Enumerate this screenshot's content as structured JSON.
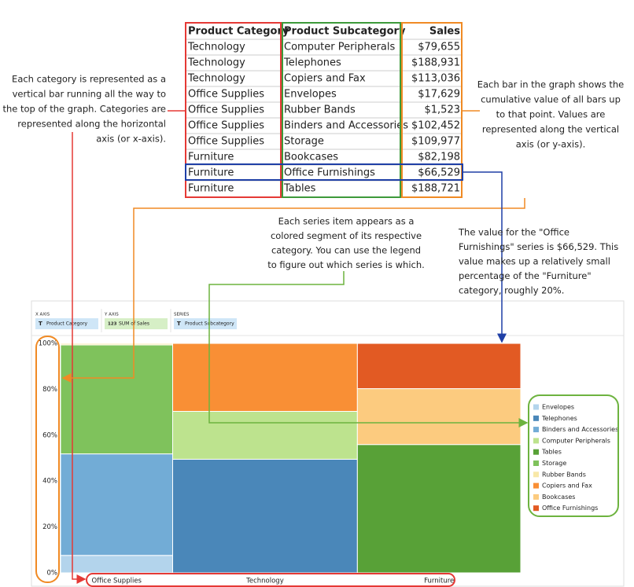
{
  "table": {
    "header": [
      "Product Category",
      "Product Subcategory",
      "Sales"
    ],
    "rows": [
      {
        "category": "Technology",
        "subcategory": "Computer Peripherals",
        "sales": {
          "value": 79655,
          "label": "$79,655"
        }
      },
      {
        "category": "Technology",
        "subcategory": "Telephones",
        "sales": {
          "value": 188931,
          "label": "$188,931"
        }
      },
      {
        "category": "Technology",
        "subcategory": "Copiers and Fax",
        "sales": {
          "value": 113036,
          "label": "$113,036"
        }
      },
      {
        "category": "Office Supplies",
        "subcategory": "Envelopes",
        "sales": {
          "value": 17629,
          "label": "$17,629"
        }
      },
      {
        "category": "Office Supplies",
        "subcategory": "Rubber Bands",
        "sales": {
          "value": 1523,
          "label": "$1,523"
        }
      },
      {
        "category": "Office Supplies",
        "subcategory": "Binders and Accessories",
        "sales": {
          "value": 102452,
          "label": "$102,452"
        }
      },
      {
        "category": "Office Supplies",
        "subcategory": "Storage",
        "sales": {
          "value": 109977,
          "label": "$109,977"
        }
      },
      {
        "category": "Furniture",
        "subcategory": "Bookcases",
        "sales": {
          "value": 82198,
          "label": "$82,198"
        }
      },
      {
        "category": "Furniture",
        "subcategory": "Office Furnishings",
        "sales": {
          "value": 66529,
          "label": "$66,529"
        }
      },
      {
        "category": "Furniture",
        "subcategory": "Tables",
        "sales": {
          "value": 188721,
          "label": "$188,721"
        }
      }
    ]
  },
  "annotations": {
    "category": [
      "Each category is represented as a",
      "vertical bar running all the way to",
      "the top of the graph. Categories are",
      "represented along the horizontal",
      "axis (or x-axis)."
    ],
    "value": [
      "Each bar in the graph shows the",
      "cumulative value of all bars up",
      "to that point. Values are",
      "represented along the vertical",
      "axis (or y-axis)."
    ],
    "series": [
      "Each series item appears as a",
      "colored segment of its respective",
      "category. You can use the legend",
      "to figure out which series is which."
    ],
    "example": [
      "The value for the \"Office",
      "Furnishings\" series is $66,529. This",
      "value makes up a relatively small",
      "percentage of the \"Furniture\"",
      "category, roughly 20%."
    ]
  },
  "chart": {
    "shelves": [
      {
        "title": "X AXIS",
        "icon": "T",
        "field": "Product Category",
        "kind": "dimension"
      },
      {
        "title": "Y AXIS",
        "icon": "123",
        "field": "SUM of Sales",
        "kind": "measure"
      },
      {
        "title": "SERIES",
        "icon": "T",
        "field": "Product Subcategory",
        "kind": "dimension"
      }
    ],
    "categories": [
      "Office Supplies",
      "Technology",
      "Furniture"
    ],
    "ylim": [
      0,
      100
    ],
    "yticks": [
      {
        "value": 0,
        "label": "0%"
      },
      {
        "value": 20,
        "label": "20%"
      },
      {
        "value": 40,
        "label": "40%"
      },
      {
        "value": 60,
        "label": "60%"
      },
      {
        "value": 80,
        "label": "80%"
      },
      {
        "value": 100,
        "label": "100%"
      }
    ],
    "legend": [
      {
        "name": "Envelopes",
        "color": "#b3d4ec"
      },
      {
        "name": "Telephones",
        "color": "#4a87b9"
      },
      {
        "name": "Binders and Accessories",
        "color": "#72acd6"
      },
      {
        "name": "Computer Peripherals",
        "color": "#bde38e"
      },
      {
        "name": "Tables",
        "color": "#58a137"
      },
      {
        "name": "Storage",
        "color": "#7fc25c"
      },
      {
        "name": "Rubber Bands",
        "color": "#f8e8a8"
      },
      {
        "name": "Copiers and Fax",
        "color": "#f98f35"
      },
      {
        "name": "Bookcases",
        "color": "#fccb7f"
      },
      {
        "name": "Office Furnishings",
        "color": "#e25a23"
      }
    ]
  }
}
